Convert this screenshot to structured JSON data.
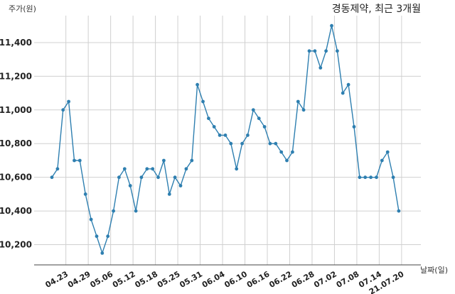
{
  "chart_data": {
    "type": "line",
    "title": "경동제약, 최근 3개월",
    "ylabel": "주가(원)",
    "xlabel": "날짜(일)",
    "ylim": [
      10080,
      11560
    ],
    "yticks": [
      10200,
      10400,
      10600,
      10800,
      11000,
      11200,
      11400
    ],
    "ytick_labels": [
      "10,200",
      "10,400",
      "10,600",
      "10,800",
      "11,000",
      "11,200",
      "11,400"
    ],
    "xtick_labels": [
      "04.23",
      "04.29",
      "05.06",
      "05.12",
      "05.18",
      "05.25",
      "05.31",
      "06.04",
      "06.10",
      "06.16",
      "06.22",
      "06.28",
      "07.02",
      "07.08",
      "07.14",
      "21.07.20"
    ],
    "xtick_index": [
      2.5,
      6.5,
      10.5,
      14.5,
      18.5,
      22.5,
      26.5,
      30.5,
      34.5,
      38.5,
      42.5,
      46.5,
      50.5,
      54.5,
      58.5,
      62.5
    ],
    "grid": true,
    "color": "#2e7fb0",
    "series": [
      {
        "values": [
          10600,
          10650,
          11000,
          11050,
          10700,
          10700,
          10500,
          10350,
          10250,
          10150,
          10250,
          10400,
          10600,
          10650,
          10550,
          10400,
          10600,
          10650,
          10650,
          10600,
          10700,
          10500,
          10600,
          10550,
          10650,
          10700,
          11150,
          11050,
          10950,
          10900,
          10850,
          10850,
          10800,
          10650,
          10800,
          10850,
          11000,
          10950,
          10900,
          10800,
          10800,
          10750,
          10700,
          10750,
          11050,
          11000,
          11350,
          11350,
          11250,
          11350,
          11500,
          11350,
          11100,
          11150,
          10900,
          10600,
          10600,
          10600,
          10600,
          10700,
          10750,
          10600,
          10400
        ]
      }
    ]
  }
}
